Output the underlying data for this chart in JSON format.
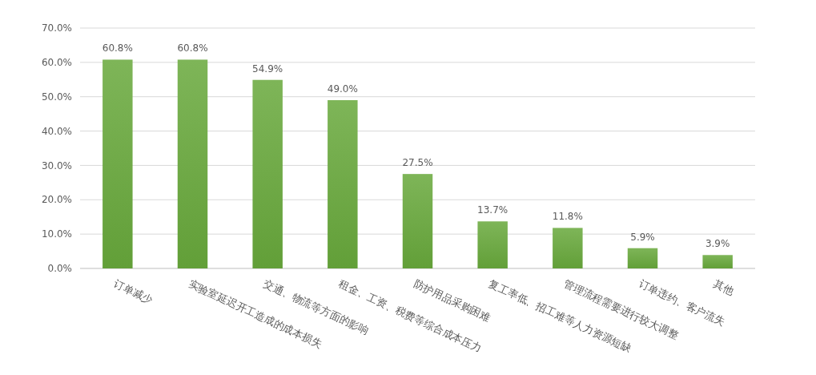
{
  "chart_data": {
    "type": "bar",
    "categories": [
      "订单减少",
      "实验室延迟开工造成的成本损失",
      "交通、物流等方面的影响",
      "租金、工资、税费等综合成本压力",
      "防护用品采购困难",
      "复工率低、招工难等人力资源短缺",
      "管理流程需要进行较大调整",
      "订单违约、客户流失",
      "其他"
    ],
    "values": [
      60.8,
      60.8,
      54.9,
      49.0,
      27.5,
      13.7,
      11.8,
      5.9,
      3.9
    ],
    "value_labels": [
      "60.8%",
      "60.8%",
      "54.9%",
      "49.0%",
      "27.5%",
      "13.7%",
      "11.8%",
      "5.9%",
      "3.9%"
    ],
    "color": "#67a83b",
    "ylim": [
      0,
      70
    ],
    "yticks": [
      {
        "value": 0,
        "label": "0.0%"
      },
      {
        "value": 10,
        "label": "10.0%"
      },
      {
        "value": 20,
        "label": "20.0%"
      },
      {
        "value": 30,
        "label": "30.0%"
      },
      {
        "value": 40,
        "label": "40.0%"
      },
      {
        "value": 50,
        "label": "50.0%"
      },
      {
        "value": 60,
        "label": "60.0%"
      },
      {
        "value": 70,
        "label": "70.0%"
      }
    ],
    "grid": "y"
  }
}
